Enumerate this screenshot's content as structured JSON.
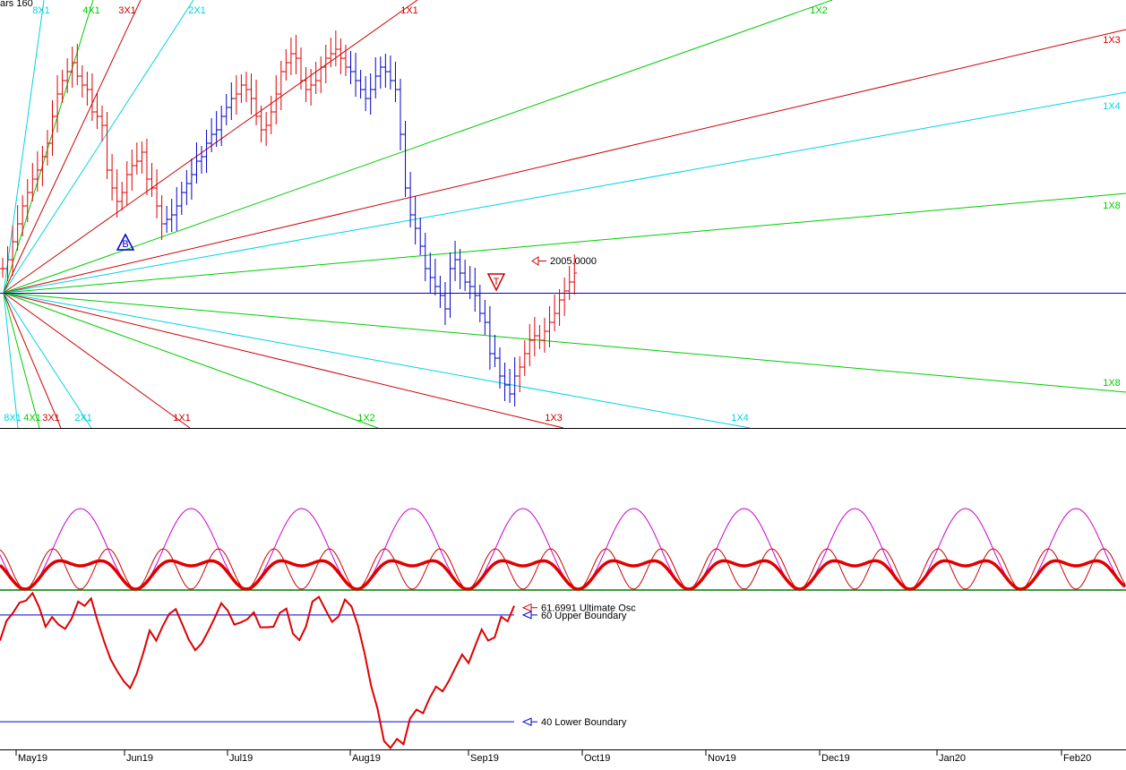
{
  "header_fragment": "ars 160",
  "colors": {
    "up_bar": "#dd0000",
    "down_bar": "#0000cc",
    "cyan": "#00d2e6",
    "green": "#00cc00",
    "red": "#cc0000",
    "blue": "#0000cc",
    "magenta": "#cc00cc",
    "osc": "#e00000",
    "baseline": "#007a00"
  },
  "chart_data": [
    {
      "type": "candlestick-with-gann-fan",
      "panel": "price",
      "x_tick_labels": [
        "May19",
        "Jun19",
        "Jul19",
        "Aug19",
        "Sep19",
        "Oct19",
        "Nov19",
        "Dec19",
        "Jan20",
        "Feb20"
      ],
      "gann_angle_labels_upper": [
        "8X1",
        "4X1",
        "3X1",
        "2X1",
        "1X1",
        "1X2",
        "1X3",
        "1X4",
        "1X8"
      ],
      "gann_angle_labels_lower": [
        "8X1",
        "4X1",
        "3X1",
        "2X1",
        "1X1",
        "1X2",
        "1X3",
        "1X4",
        "1X8"
      ],
      "markers": [
        {
          "label": "B",
          "kind": "buy-triangle",
          "color": "#0000cc"
        },
        {
          "label": "T",
          "kind": "top-triangle",
          "color": "#cc0000"
        }
      ],
      "price_label": "2005.0000",
      "bars_up": [
        [
          0,
          1,
          1
        ],
        [
          1,
          2,
          1
        ],
        [
          2,
          1,
          2
        ],
        [
          3,
          2,
          1
        ],
        [
          5,
          3,
          4
        ],
        [
          10,
          6,
          7
        ],
        [
          11,
          7,
          8
        ],
        [
          12,
          8,
          9
        ],
        [
          14,
          9,
          11
        ],
        [
          15,
          10,
          13
        ],
        [
          17,
          12,
          15
        ],
        [
          18,
          13,
          17
        ],
        [
          20,
          15,
          16
        ],
        [
          21,
          14,
          15
        ],
        [
          23,
          12,
          15
        ],
        [
          24,
          13,
          14
        ],
        [
          25,
          14,
          16
        ],
        [
          26,
          16,
          18
        ],
        [
          27,
          15,
          17
        ],
        [
          28,
          16,
          19
        ],
        [
          29,
          18,
          20
        ],
        [
          30,
          17,
          18
        ],
        [
          31,
          14,
          15
        ],
        [
          32,
          12,
          13
        ],
        [
          34,
          10,
          11
        ],
        [
          35,
          9,
          11
        ],
        [
          36,
          10,
          12
        ],
        [
          38,
          12,
          14
        ],
        [
          40,
          13,
          15
        ],
        [
          41,
          14,
          16
        ],
        [
          43,
          16,
          18
        ],
        [
          44,
          17,
          19
        ],
        [
          46,
          19,
          21
        ],
        [
          47,
          20,
          22
        ],
        [
          48,
          19,
          20
        ],
        [
          50,
          16,
          18
        ],
        [
          51,
          17,
          19
        ],
        [
          53,
          19,
          21
        ],
        [
          54,
          20,
          22
        ],
        [
          55,
          21,
          20
        ],
        [
          57,
          18,
          19
        ],
        [
          58,
          16,
          17
        ],
        [
          59,
          14,
          15
        ],
        [
          61,
          10,
          12
        ],
        [
          62,
          11,
          13
        ],
        [
          65,
          14,
          16
        ],
        [
          66,
          13,
          15
        ],
        [
          67,
          15,
          16
        ],
        [
          68,
          12,
          13
        ]
      ],
      "bars_down": [
        [
          6,
          4,
          3
        ],
        [
          7,
          5,
          4
        ],
        [
          8,
          7,
          6
        ],
        [
          9,
          6,
          5
        ],
        [
          13,
          9,
          8
        ],
        [
          16,
          12,
          11
        ],
        [
          19,
          16,
          15
        ],
        [
          22,
          15,
          13
        ],
        [
          33,
          13,
          12
        ],
        [
          37,
          12,
          10
        ],
        [
          39,
          14,
          13
        ],
        [
          42,
          17,
          16
        ],
        [
          45,
          20,
          19
        ],
        [
          49,
          21,
          19
        ],
        [
          52,
          19,
          18
        ],
        [
          56,
          21,
          19
        ],
        [
          60,
          15,
          13
        ],
        [
          63,
          12,
          10
        ],
        [
          64,
          11,
          12
        ]
      ],
      "levels": {
        "upper_boundary": 60,
        "lower_boundary": 40
      }
    },
    {
      "type": "line",
      "panel": "cycles",
      "series": [
        {
          "name": "",
          "color": "#cc00cc"
        },
        {
          "name": "",
          "color": "#cc0000"
        },
        {
          "name": "",
          "color": "#e00000"
        }
      ]
    },
    {
      "type": "line",
      "panel": "oscillator",
      "values": [
        55.2,
        58.9,
        60.4,
        62.3,
        62.7,
        64.1,
        61.5,
        57.8,
        59.6,
        58.2,
        57.4,
        59.3,
        62.5,
        61.7,
        63.1,
        58.8,
        55.0,
        51.7,
        49.5,
        47.6,
        46.3,
        49.0,
        52.8,
        57.1,
        55.2,
        57.9,
        60.2,
        61.1,
        58.3,
        55.4,
        53.4,
        54.7,
        57.0,
        59.5,
        62.2,
        60.8,
        58.2,
        58.6,
        59.2,
        60.5,
        57.7,
        57.7,
        57.8,
        60.4,
        61.2,
        56.5,
        55.3,
        57.8,
        62.5,
        63.4,
        61.0,
        58.7,
        59.7,
        62.9,
        61.6,
        58.0,
        52.9,
        46.8,
        42.5,
        36.4,
        35.1,
        36.8,
        35.8,
        40.6,
        42.3,
        41.6,
        44.4,
        46.6,
        45.7,
        47.7,
        50.2,
        52.6,
        51.0,
        54.2,
        57.3,
        55.2,
        55.8,
        59.7,
        58.8,
        61.7
      ],
      "last_value_label": "61.6991 Ultimate Osc",
      "upper_boundary_label": "60  Upper Boundary",
      "lower_boundary_label": "40  Lower Boundary",
      "upper_boundary": 60,
      "lower_boundary": 40
    }
  ]
}
